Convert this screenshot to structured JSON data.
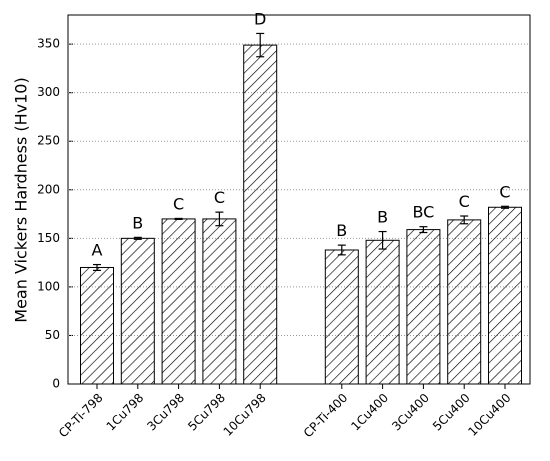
{
  "chart_data": {
    "type": "bar",
    "y_label": "Mean Vickers Hardness (Hv10)",
    "categories": [
      "CP-Ti-798",
      "1Cu798",
      "3Cu798",
      "5Cu798",
      "10Cu798",
      null,
      "CP-Ti-400",
      "1Cu400",
      "3Cu400",
      "5Cu400",
      "10Cu400"
    ],
    "values": [
      120,
      150,
      170,
      170,
      349,
      null,
      138,
      148,
      159,
      169,
      182
    ],
    "errors": [
      3,
      1,
      0.5,
      7,
      12,
      null,
      5,
      9,
      3,
      4,
      1
    ],
    "group_letters": [
      "A",
      "B",
      "C",
      "C",
      "D",
      null,
      "B",
      "B",
      "BC",
      "C",
      "C"
    ],
    "color": "#000000",
    "ylim": [
      0,
      380
    ],
    "yticks": [
      0,
      50,
      100,
      150,
      200,
      250,
      300,
      350
    ],
    "grid": true
  }
}
